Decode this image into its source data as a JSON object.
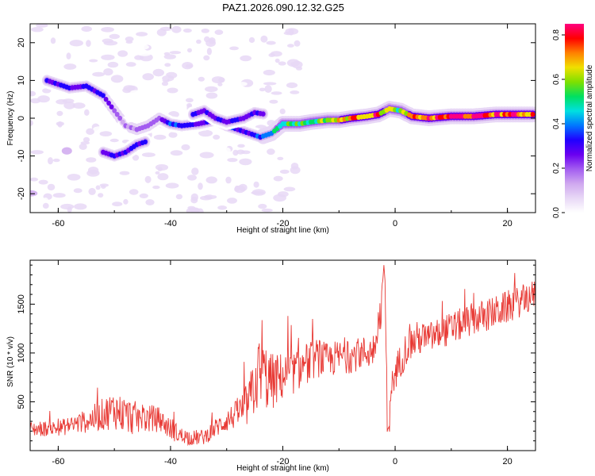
{
  "title": "PAZ1.2026.090.12.32.G25",
  "colors": {
    "snr_line": "#e83a35",
    "axis": "#000000",
    "colormap": [
      "#ffffff",
      "#e8d8f6",
      "#cfa8ef",
      "#a35cf0",
      "#6a00f0",
      "#2000ff",
      "#0078ff",
      "#00e0e0",
      "#00e060",
      "#7ee000",
      "#f0e000",
      "#ff8000",
      "#ff0000",
      "#ff0080"
    ]
  },
  "chart_data": [
    {
      "type": "heatmap",
      "name": "spectrogram",
      "xlabel": "Height of straight line (km)",
      "ylabel": "Frequency (Hz)",
      "xlim": [
        -65,
        25
      ],
      "ylim": [
        -25,
        25
      ],
      "xticks": [
        -60,
        -40,
        -20,
        0,
        20
      ],
      "yticks": [
        -20,
        -10,
        0,
        10,
        20
      ],
      "colorbar": {
        "label": "Normalized spectral amplitude",
        "range": [
          0,
          0.85
        ],
        "ticks": [
          0.0,
          0.2,
          0.4,
          0.6,
          0.8
        ]
      },
      "ridge": {
        "description": "dominant frequency track (km, Hz)",
        "points": [
          [
            -62,
            10
          ],
          [
            -58,
            8
          ],
          [
            -55,
            8.5
          ],
          [
            -52,
            6
          ],
          [
            -50,
            2
          ],
          [
            -48,
            -2
          ],
          [
            -46,
            -3
          ],
          [
            -44,
            -2
          ],
          [
            -42,
            0
          ],
          [
            -40,
            -1.5
          ],
          [
            -38,
            -2
          ],
          [
            -35,
            -1.5
          ],
          [
            -32,
            -0.5
          ],
          [
            -30,
            -2
          ],
          [
            -28,
            -3
          ],
          [
            -26,
            -4
          ],
          [
            -24,
            -5
          ],
          [
            -22,
            -4
          ],
          [
            -20,
            -1.5
          ],
          [
            -17,
            -1.5
          ],
          [
            -15,
            -1
          ],
          [
            -12,
            -0.5
          ],
          [
            -10,
            -0.5
          ],
          [
            -8,
            0
          ],
          [
            -5,
            0.5
          ],
          [
            -3,
            1
          ],
          [
            -1,
            2.5
          ],
          [
            1,
            2
          ],
          [
            3,
            0.5
          ],
          [
            6,
            0
          ],
          [
            10,
            0.5
          ],
          [
            14,
            0.5
          ],
          [
            18,
            1
          ],
          [
            22,
            1
          ],
          [
            25,
            1
          ]
        ],
        "amplitudes": [
          0.3,
          0.3,
          0.32,
          0.3,
          0.2,
          0.15,
          0.2,
          0.22,
          0.22,
          0.35,
          0.35,
          0.3,
          0.3,
          0.35,
          0.3,
          0.3,
          0.4,
          0.45,
          0.5,
          0.55,
          0.5,
          0.6,
          0.65,
          0.7,
          0.75,
          0.72,
          0.6,
          0.55,
          0.7,
          0.75,
          0.78,
          0.8,
          0.78,
          0.75,
          0.7
        ]
      },
      "secondary": [
        {
          "description": "lower branch",
          "points": [
            [
              -52,
              -9
            ],
            [
              -50,
              -10
            ],
            [
              -48,
              -9
            ],
            [
              -46,
              -7
            ],
            [
              -44,
              -6
            ]
          ]
        },
        {
          "description": "mid branch",
          "points": [
            [
              -36,
              1
            ],
            [
              -34,
              2
            ],
            [
              -32,
              0
            ],
            [
              -30,
              -1
            ],
            [
              -27,
              0
            ],
            [
              -25,
              1.5
            ],
            [
              -23,
              1
            ]
          ]
        }
      ]
    },
    {
      "type": "line",
      "name": "snr",
      "xlabel": "Height of straight line (km)",
      "ylabel": "SNR (10 * v/v)",
      "xlim": [
        -65,
        25
      ],
      "ylim": [
        0,
        1950
      ],
      "xticks": [
        -60,
        -40,
        -20,
        0,
        20
      ],
      "yticks": [
        500,
        1000,
        1500
      ],
      "series": [
        {
          "name": "SNR",
          "x": [
            -65,
            -60,
            -55,
            -50,
            -48,
            -46,
            -44,
            -42,
            -40,
            -38,
            -36,
            -34,
            -32,
            -30,
            -28,
            -26,
            -25,
            -24,
            -22,
            -20,
            -18,
            -16,
            -14,
            -12,
            -10,
            -8,
            -6,
            -4,
            -3,
            -2,
            -1.5,
            -1,
            0,
            2,
            4,
            6,
            8,
            10,
            12,
            14,
            16,
            18,
            20,
            22,
            25
          ],
          "values": [
            220,
            230,
            300,
            420,
            360,
            330,
            330,
            320,
            220,
            150,
            130,
            140,
            230,
            310,
            380,
            480,
            700,
            800,
            700,
            760,
            800,
            880,
            950,
            920,
            960,
            960,
            1000,
            1020,
            1300,
            1650,
            900,
            550,
            800,
            1050,
            1150,
            1150,
            1200,
            1250,
            1300,
            1350,
            1380,
            1420,
            1470,
            1520,
            1600
          ],
          "noise_amplitude": [
            80,
            80,
            120,
            200,
            200,
            170,
            150,
            130,
            110,
            90,
            80,
            80,
            100,
            120,
            150,
            250,
            350,
            400,
            300,
            250,
            220,
            220,
            200,
            180,
            180,
            170,
            170,
            180,
            200,
            200,
            150,
            150,
            180,
            180,
            180,
            170,
            170,
            170,
            170,
            170,
            170,
            170,
            170,
            160,
            160
          ]
        }
      ]
    }
  ]
}
